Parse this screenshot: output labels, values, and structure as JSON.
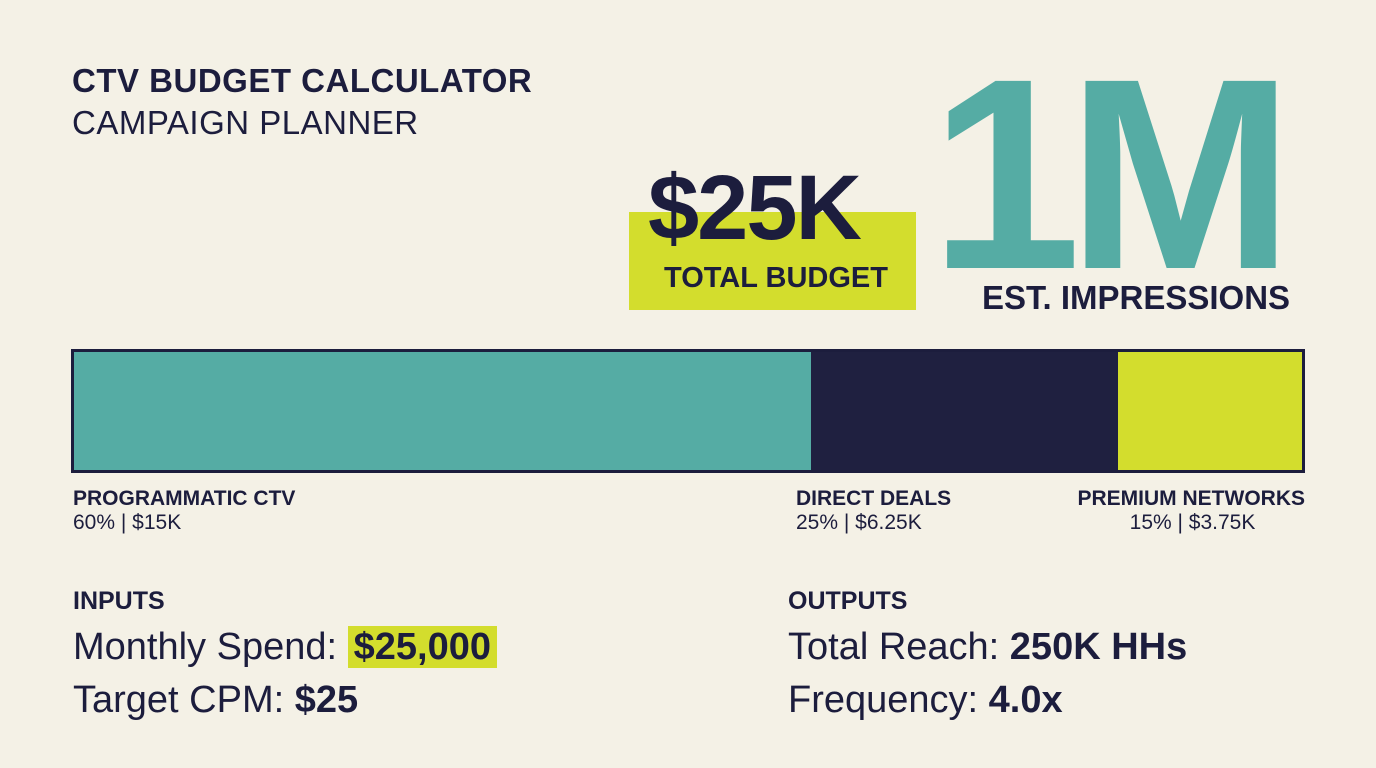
{
  "header": {
    "title": "CTV BUDGET CALCULATOR",
    "subtitle": "CAMPAIGN PLANNER"
  },
  "kpis": {
    "budget_value": "$25K",
    "budget_label": "TOTAL BUDGET",
    "impressions_value": "1M",
    "impressions_label": "EST. IMPRESSIONS"
  },
  "allocation": {
    "segments": [
      {
        "name": "PROGRAMMATIC CTV",
        "detail": "60% | $15K",
        "share": 0.6,
        "color": "#55aca4"
      },
      {
        "name": "DIRECT DEALS",
        "detail": "25% | $6.25K",
        "share": 0.25,
        "color": "#1f2040"
      },
      {
        "name": "PREMIUM NETWORKS",
        "detail": "15% | $3.75K",
        "share": 0.15,
        "color": "#d3dd2d"
      }
    ]
  },
  "inputs": {
    "heading": "INPUTS",
    "monthly_spend_label": "Monthly Spend:",
    "monthly_spend_value": "$25,000",
    "target_cpm_label": "Target CPM:",
    "target_cpm_value": "$25"
  },
  "outputs": {
    "heading": "OUTPUTS",
    "total_reach_label": "Total Reach:",
    "total_reach_value": "250K HHs",
    "frequency_label": "Frequency:",
    "frequency_value": "4.0x"
  },
  "colors": {
    "background": "#f4f1e6",
    "text": "#1c1d3d",
    "teal": "#55aca4",
    "lime": "#d3dd2d"
  }
}
